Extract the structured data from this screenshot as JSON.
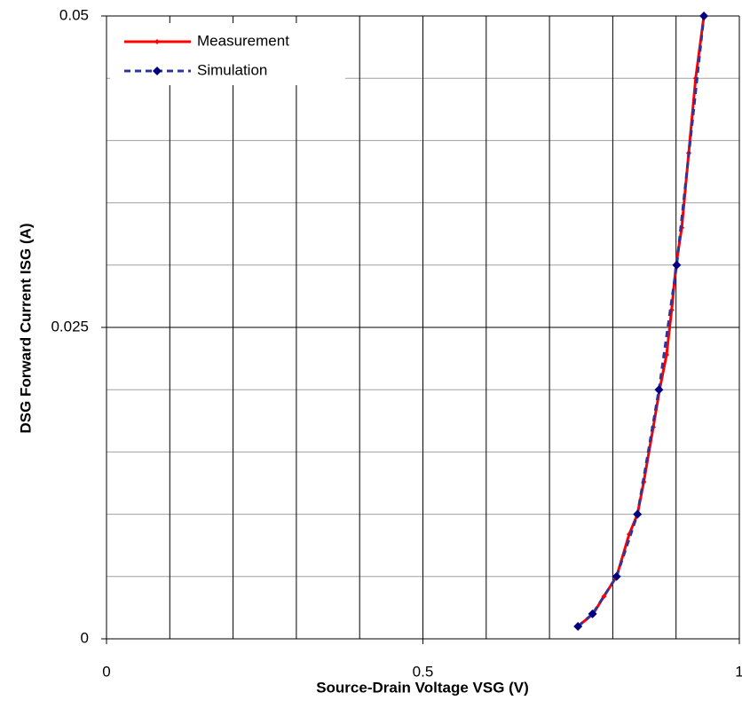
{
  "chart_data": {
    "type": "line",
    "xlabel": "Source-Drain Voltage VSG (V)",
    "ylabel": "DSG Forward Current ISG (A)",
    "xlim": [
      0,
      1
    ],
    "xticks": [
      0,
      0.5,
      1
    ],
    "ylim": [
      0,
      0.05
    ],
    "yticks": [
      0,
      0.025,
      0.05
    ],
    "x_grid": [
      0,
      0.1,
      0.2,
      0.3,
      0.4,
      0.5,
      0.6,
      0.7,
      0.8,
      0.9,
      1
    ],
    "y_grid": [
      0,
      0.005,
      0.01,
      0.015,
      0.02,
      0.025,
      0.03,
      0.035,
      0.04,
      0.045,
      0.05
    ],
    "grid": true,
    "legend": "upper left",
    "series": [
      {
        "name": "Measurement",
        "color": "#ff0000",
        "dashed": false,
        "x": [
          0.745,
          0.769,
          0.786,
          0.806,
          0.826,
          0.839,
          0.849,
          0.864,
          0.874,
          0.885,
          0.893,
          0.9,
          0.909,
          0.92,
          0.931,
          0.944
        ],
        "values": [
          0.001,
          0.002,
          0.0034,
          0.005,
          0.0084,
          0.01,
          0.0126,
          0.017,
          0.02,
          0.0228,
          0.0264,
          0.03,
          0.033,
          0.039,
          0.045,
          0.05
        ]
      },
      {
        "name": "Simulation",
        "color": "#333399",
        "dashed": true,
        "x": [
          0.745,
          0.768,
          0.806,
          0.839,
          0.873,
          0.901,
          0.944
        ],
        "values": [
          0.001,
          0.002,
          0.005,
          0.01,
          0.02,
          0.03,
          0.05
        ]
      }
    ]
  }
}
